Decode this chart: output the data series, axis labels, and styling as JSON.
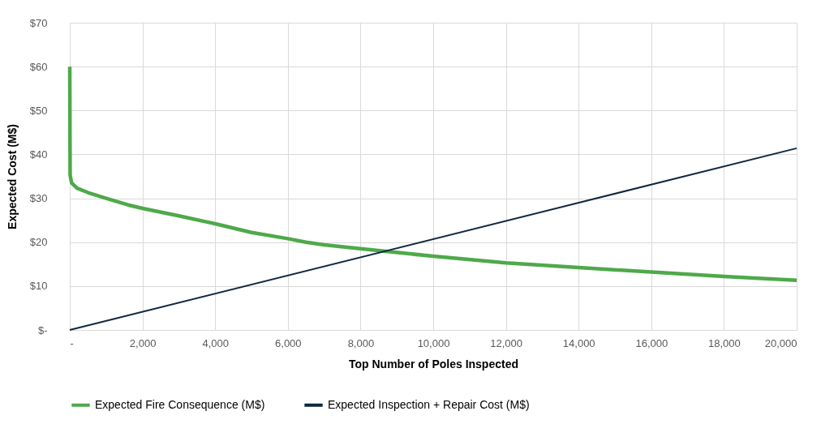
{
  "chart_data": {
    "type": "line",
    "xlabel": "Top Number of Poles Inspected",
    "ylabel": "Expected Cost (M$)",
    "xlim": [
      0,
      20000
    ],
    "xticks": [
      {
        "value": 0,
        "label": "-"
      },
      {
        "value": 2000,
        "label": "2,000"
      },
      {
        "value": 4000,
        "label": "4,000"
      },
      {
        "value": 6000,
        "label": "6,000"
      },
      {
        "value": 8000,
        "label": "8,000"
      },
      {
        "value": 10000,
        "label": "10,000"
      },
      {
        "value": 12000,
        "label": "12,000"
      },
      {
        "value": 14000,
        "label": "14,000"
      },
      {
        "value": 16000,
        "label": "16,000"
      },
      {
        "value": 18000,
        "label": "18,000"
      },
      {
        "value": 20000,
        "label": "20,000"
      }
    ],
    "ylim": [
      0,
      70
    ],
    "yticks": [
      {
        "value": 0,
        "label": "$-"
      },
      {
        "value": 10,
        "label": "$10"
      },
      {
        "value": 20,
        "label": "$20"
      },
      {
        "value": 30,
        "label": "$30"
      },
      {
        "value": 40,
        "label": "$40"
      },
      {
        "value": 50,
        "label": "$50"
      },
      {
        "value": 60,
        "label": "$60"
      },
      {
        "value": 70,
        "label": "$70"
      }
    ],
    "grid": true,
    "legend": "bottom",
    "marker": "none",
    "line_style": "solid",
    "series": [
      {
        "name": "Expected Fire Consequence (M$)",
        "color": "#4ea94a",
        "x": [
          0,
          10,
          50,
          200,
          500,
          1000,
          1600,
          2000,
          3000,
          4000,
          5000,
          6000,
          6500,
          7000,
          8000,
          8700,
          10000,
          12000,
          14000,
          16000,
          18000,
          20000
        ],
        "values": [
          60,
          35.3,
          33.5,
          32.3,
          31.3,
          30,
          28.5,
          27.7,
          26,
          24.2,
          22.2,
          20.8,
          20,
          19.4,
          18.5,
          17.9,
          16.8,
          15.3,
          14.2,
          13.2,
          12.2,
          11.3
        ]
      },
      {
        "name": "Expected Inspection + Repair Cost (M$)",
        "color": "#0e2841",
        "x": [
          0,
          20000
        ],
        "values": [
          0,
          41.4
        ]
      }
    ]
  }
}
